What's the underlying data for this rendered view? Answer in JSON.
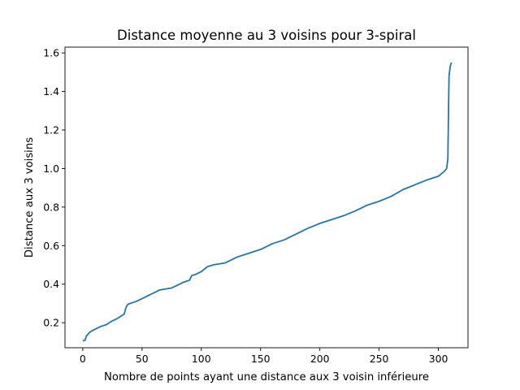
{
  "chart_data": {
    "type": "line",
    "title": "Distance moyenne au 3 voisins pour 3-spiral",
    "xlabel": "Nombre de points ayant une distance aux 3 voisin inférieure",
    "ylabel": "Distance aux 3 voisins",
    "xlim": [
      -15,
      325
    ],
    "ylim": [
      0.07,
      1.63
    ],
    "xticks": [
      0,
      50,
      100,
      150,
      200,
      250,
      300
    ],
    "yticks": [
      0.2,
      0.4,
      0.6,
      0.8,
      1.0,
      1.2,
      1.4,
      1.6
    ],
    "xtick_labels": [
      "0",
      "50",
      "100",
      "150",
      "200",
      "250",
      "300"
    ],
    "ytick_labels": [
      "0.2",
      "0.4",
      "0.6",
      "0.8",
      "1.0",
      "1.2",
      "1.4",
      "1.6"
    ],
    "grid": false,
    "color": "#1f77b4",
    "series": [
      {
        "x": [
          0,
          2,
          3,
          5,
          7,
          10,
          15,
          20,
          25,
          27,
          30,
          35,
          36,
          37,
          38,
          40,
          45,
          50,
          55,
          60,
          65,
          70,
          75,
          80,
          85,
          90,
          92,
          95,
          100,
          105,
          110,
          120,
          130,
          140,
          150,
          160,
          170,
          180,
          190,
          200,
          210,
          220,
          230,
          240,
          250,
          260,
          270,
          280,
          290,
          300,
          305,
          307,
          308,
          309,
          310,
          311
        ],
        "y": [
          0.105,
          0.11,
          0.13,
          0.145,
          0.155,
          0.165,
          0.18,
          0.19,
          0.21,
          0.215,
          0.225,
          0.245,
          0.27,
          0.285,
          0.295,
          0.3,
          0.31,
          0.325,
          0.34,
          0.355,
          0.37,
          0.375,
          0.38,
          0.395,
          0.41,
          0.42,
          0.445,
          0.45,
          0.465,
          0.49,
          0.5,
          0.51,
          0.54,
          0.56,
          0.58,
          0.61,
          0.63,
          0.66,
          0.69,
          0.715,
          0.735,
          0.755,
          0.78,
          0.81,
          0.83,
          0.855,
          0.89,
          0.915,
          0.94,
          0.96,
          0.985,
          1.0,
          1.05,
          1.48,
          1.53,
          1.55
        ]
      }
    ]
  }
}
